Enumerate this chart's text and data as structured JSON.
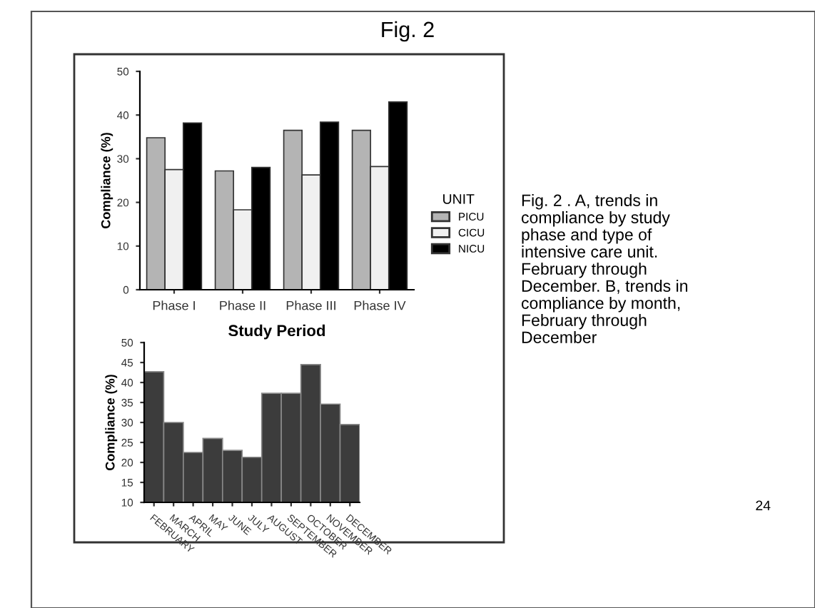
{
  "chart_data": [
    {
      "type": "bar",
      "title": "Fig. 2",
      "xlabel": "Study Period",
      "ylabel": "Compliance (%)",
      "legend_title": "UNIT",
      "legend": "right",
      "categories": [
        "Phase I",
        "Phase II",
        "Phase III",
        "Phase IV"
      ],
      "series": [
        {
          "name": "PICU",
          "color": "#b4b4b4",
          "values": [
            34.8,
            27.2,
            36.5,
            36.5
          ]
        },
        {
          "name": "CICU",
          "color": "#f0f0f0",
          "values": [
            27.5,
            18.3,
            26.3,
            28.2
          ]
        },
        {
          "name": "NICU",
          "color": "#000000",
          "values": [
            38.2,
            28.0,
            38.4,
            43.0
          ]
        }
      ],
      "ylim": [
        0,
        50
      ],
      "yticks": [
        0,
        10,
        20,
        30,
        40,
        50
      ],
      "grid": false,
      "annotations": [
        "Fig. 2 . A, trends in\ncompliance by study\nphase and type of\nintensive care unit.\nFebruary through\nDecember. B, trends in\ncompliance by month,\nFebruary through\nDecember",
        "24"
      ]
    },
    {
      "type": "bar",
      "ylabel": "Compliance (%)",
      "categories": [
        "FEBRUARY",
        "MARCH",
        "APRIL",
        "MAY",
        "JUNE",
        "JULY",
        "AUGUST",
        "SEPTEMBER",
        "OCTOBER",
        "NOVEMBER",
        "DECEMBER"
      ],
      "values": [
        42.7,
        30.0,
        22.5,
        26.0,
        23.0,
        21.3,
        37.3,
        37.3,
        44.5,
        34.6,
        29.5
      ],
      "color": "#3c3c3c",
      "ylim": [
        10,
        50
      ],
      "yticks": [
        10,
        15,
        20,
        25,
        30,
        35,
        40,
        45,
        50
      ],
      "grid": false
    }
  ]
}
